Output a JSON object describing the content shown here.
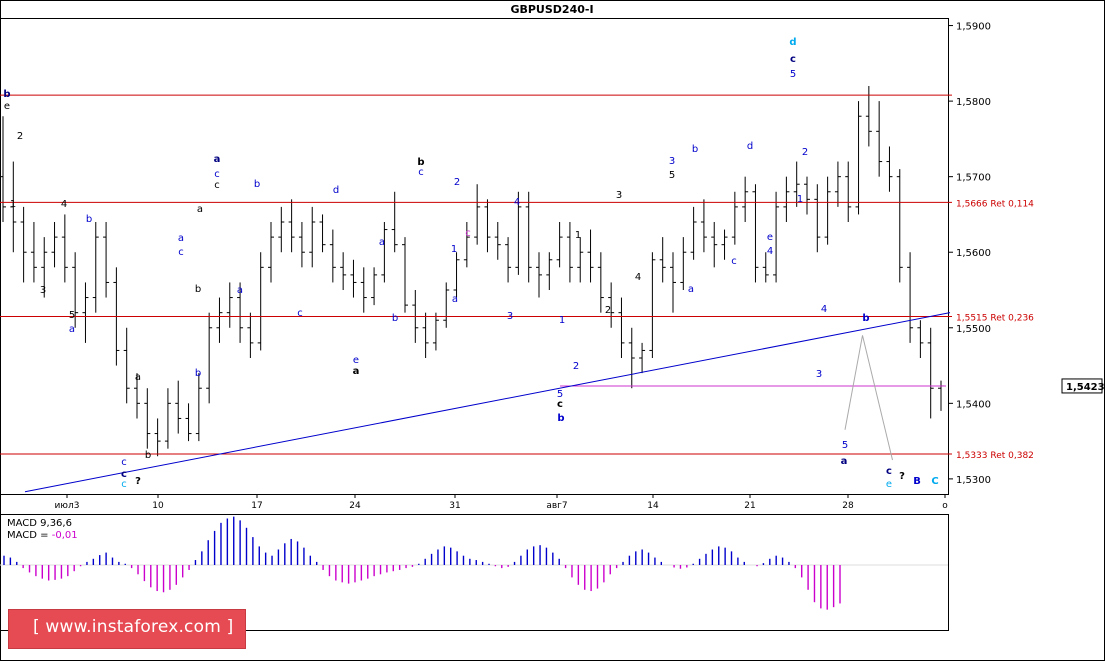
{
  "chart_data": {
    "type": "candlestick",
    "title": "GBPUSD240-I",
    "y_ticks": [
      "1,5900",
      "1,5800",
      "1,5700",
      "1,5600",
      "1,5500",
      "1,5400",
      "1,5300"
    ],
    "current_price": "1,5423",
    "x_ticks": [
      "июл3",
      "10",
      "17",
      "24",
      "31",
      "авг7",
      "14",
      "21",
      "28",
      "о"
    ],
    "series": [
      {
        "values": [
          [
            1.57,
            1.578,
            1.564,
            1.566
          ],
          [
            1.566,
            1.572,
            1.56,
            1.564
          ],
          [
            1.564,
            1.566,
            1.556,
            1.56
          ],
          [
            1.56,
            1.564,
            1.556,
            1.558
          ],
          [
            1.558,
            1.562,
            1.554,
            1.56
          ],
          [
            1.56,
            1.564,
            1.558,
            1.562
          ],
          [
            1.562,
            1.565,
            1.556,
            1.558
          ],
          [
            1.558,
            1.56,
            1.55,
            1.552
          ],
          [
            1.552,
            1.556,
            1.548,
            1.554
          ],
          [
            1.554,
            1.564,
            1.552,
            1.562
          ],
          [
            1.562,
            1.564,
            1.554,
            1.556
          ],
          [
            1.556,
            1.558,
            1.545,
            1.547
          ],
          [
            1.547,
            1.55,
            1.54,
            1.542
          ],
          [
            1.542,
            1.544,
            1.538,
            1.54
          ],
          [
            1.54,
            1.542,
            1.534,
            1.536
          ],
          [
            1.536,
            1.538,
            1.533,
            1.535
          ],
          [
            1.535,
            1.542,
            1.534,
            1.54
          ],
          [
            1.54,
            1.543,
            1.536,
            1.538
          ],
          [
            1.538,
            1.54,
            1.535,
            1.536
          ],
          [
            1.536,
            1.544,
            1.535,
            1.542
          ],
          [
            1.542,
            1.552,
            1.54,
            1.55
          ],
          [
            1.55,
            1.554,
            1.548,
            1.552
          ],
          [
            1.552,
            1.556,
            1.55,
            1.554
          ],
          [
            1.554,
            1.556,
            1.548,
            1.55
          ],
          [
            1.55,
            1.552,
            1.546,
            1.548
          ],
          [
            1.548,
            1.56,
            1.547,
            1.558
          ],
          [
            1.558,
            1.564,
            1.556,
            1.562
          ],
          [
            1.562,
            1.566,
            1.56,
            1.564
          ],
          [
            1.564,
            1.567,
            1.56,
            1.562
          ],
          [
            1.562,
            1.564,
            1.558,
            1.56
          ],
          [
            1.56,
            1.566,
            1.558,
            1.564
          ],
          [
            1.564,
            1.565,
            1.56,
            1.561
          ],
          [
            1.561,
            1.563,
            1.556,
            1.558
          ],
          [
            1.558,
            1.56,
            1.555,
            1.557
          ],
          [
            1.557,
            1.559,
            1.554,
            1.556
          ],
          [
            1.556,
            1.558,
            1.552,
            1.554
          ],
          [
            1.554,
            1.558,
            1.553,
            1.557
          ],
          [
            1.557,
            1.564,
            1.556,
            1.563
          ],
          [
            1.563,
            1.568,
            1.56,
            1.561
          ],
          [
            1.561,
            1.562,
            1.552,
            1.553
          ],
          [
            1.553,
            1.555,
            1.548,
            1.55
          ],
          [
            1.55,
            1.552,
            1.546,
            1.548
          ],
          [
            1.548,
            1.552,
            1.547,
            1.551
          ],
          [
            1.551,
            1.556,
            1.55,
            1.555
          ],
          [
            1.555,
            1.56,
            1.554,
            1.559
          ],
          [
            1.559,
            1.564,
            1.558,
            1.562
          ],
          [
            1.562,
            1.569,
            1.561,
            1.566
          ],
          [
            1.566,
            1.567,
            1.56,
            1.562
          ],
          [
            1.562,
            1.564,
            1.559,
            1.561
          ],
          [
            1.561,
            1.562,
            1.556,
            1.558
          ],
          [
            1.558,
            1.568,
            1.557,
            1.566
          ],
          [
            1.566,
            1.568,
            1.556,
            1.558
          ],
          [
            1.558,
            1.56,
            1.554,
            1.557
          ],
          [
            1.557,
            1.56,
            1.555,
            1.559
          ],
          [
            1.559,
            1.564,
            1.558,
            1.562
          ],
          [
            1.562,
            1.564,
            1.556,
            1.558
          ],
          [
            1.558,
            1.562,
            1.556,
            1.56
          ],
          [
            1.56,
            1.563,
            1.556,
            1.558
          ],
          [
            1.558,
            1.56,
            1.552,
            1.554
          ],
          [
            1.554,
            1.556,
            1.55,
            1.552
          ],
          [
            1.552,
            1.554,
            1.546,
            1.548
          ],
          [
            1.548,
            1.55,
            1.542,
            1.546
          ],
          [
            1.546,
            1.548,
            1.544,
            1.547
          ],
          [
            1.547,
            1.56,
            1.546,
            1.559
          ],
          [
            1.559,
            1.562,
            1.556,
            1.558
          ],
          [
            1.558,
            1.56,
            1.552,
            1.556
          ],
          [
            1.556,
            1.562,
            1.555,
            1.56
          ],
          [
            1.56,
            1.566,
            1.559,
            1.564
          ],
          [
            1.564,
            1.567,
            1.56,
            1.562
          ],
          [
            1.562,
            1.564,
            1.558,
            1.561
          ],
          [
            1.561,
            1.563,
            1.559,
            1.562
          ],
          [
            1.562,
            1.568,
            1.561,
            1.566
          ],
          [
            1.566,
            1.57,
            1.564,
            1.568
          ],
          [
            1.568,
            1.569,
            1.556,
            1.558
          ],
          [
            1.558,
            1.56,
            1.556,
            1.557
          ],
          [
            1.557,
            1.568,
            1.556,
            1.566
          ],
          [
            1.566,
            1.57,
            1.564,
            1.568
          ],
          [
            1.568,
            1.572,
            1.566,
            1.569
          ],
          [
            1.569,
            1.57,
            1.565,
            1.567
          ],
          [
            1.567,
            1.569,
            1.56,
            1.562
          ],
          [
            1.562,
            1.57,
            1.561,
            1.568
          ],
          [
            1.568,
            1.572,
            1.566,
            1.57
          ],
          [
            1.57,
            1.572,
            1.564,
            1.566
          ],
          [
            1.566,
            1.58,
            1.565,
            1.578
          ],
          [
            1.578,
            1.582,
            1.574,
            1.576
          ],
          [
            1.576,
            1.58,
            1.57,
            1.572
          ],
          [
            1.572,
            1.574,
            1.568,
            1.57
          ],
          [
            1.57,
            1.571,
            1.556,
            1.558
          ],
          [
            1.558,
            1.56,
            1.548,
            1.55
          ],
          [
            1.55,
            1.551,
            1.546,
            1.548
          ],
          [
            1.548,
            1.55,
            1.538,
            1.542
          ],
          [
            1.542,
            1.543,
            1.539,
            1.5423
          ]
        ]
      }
    ],
    "horizontal_levels": [
      {
        "value": 1.5808,
        "label": ""
      },
      {
        "value": 1.5666,
        "label": "1,5666 Ret 0,114"
      },
      {
        "value": 1.5515,
        "label": "1,5515 Ret 0,236"
      },
      {
        "value": 1.5333,
        "label": "1,5333 Ret 0,382"
      }
    ],
    "price_line": {
      "value": 1.5423,
      "color": "#cc33cc"
    },
    "trendline": {
      "from": [
        "июл3",
        1.5283
      ],
      "to": [
        "о",
        1.552
      ],
      "color": "#0000cc"
    },
    "projection": {
      "points": [
        [
          0.0,
          1.5365
        ],
        [
          0.35,
          1.549
        ],
        [
          0.95,
          1.5325
        ]
      ],
      "color": "#aaaaaa"
    },
    "wave_labels": [
      {
        "text": "b",
        "color": "#000080",
        "bold": true
      },
      {
        "text": "e",
        "color": "#000000"
      },
      {
        "text": "2",
        "color": "#000000"
      },
      {
        "text": "1",
        "color": "#000000"
      },
      {
        "text": "4",
        "color": "#000000"
      },
      {
        "text": "3",
        "color": "#000000"
      },
      {
        "text": "b",
        "color": "#0000cc"
      },
      {
        "text": "5",
        "color": "#000000"
      },
      {
        "text": "a",
        "color": "#0000cc"
      },
      {
        "text": "c",
        "color": "#0000cc"
      },
      {
        "text": "c",
        "color": "#000080",
        "bold": true
      },
      {
        "text": "c",
        "color": "#00aaee"
      },
      {
        "text": "?",
        "color": "#000000",
        "bold": true
      },
      {
        "text": "b",
        "color": "#000000"
      },
      {
        "text": "a",
        "color": "#000000"
      },
      {
        "text": "a",
        "color": "#0000cc"
      },
      {
        "text": "c",
        "color": "#0000cc"
      },
      {
        "text": "b",
        "color": "#000000"
      },
      {
        "text": "b",
        "color": "#0000cc"
      },
      {
        "text": "a",
        "color": "#000000"
      },
      {
        "text": "a",
        "color": "#000080",
        "bold": true
      },
      {
        "text": "c",
        "color": "#0000cc"
      },
      {
        "text": "c",
        "color": "#000000"
      },
      {
        "text": "a",
        "color": "#0000cc"
      },
      {
        "text": "b",
        "color": "#0000cc"
      },
      {
        "text": "c",
        "color": "#0000cc"
      },
      {
        "text": "d",
        "color": "#0000cc"
      },
      {
        "text": "e",
        "color": "#0000cc"
      },
      {
        "text": "a",
        "color": "#000000",
        "bold": true
      },
      {
        "text": "a",
        "color": "#0000cc"
      },
      {
        "text": "b",
        "color": "#0000cc"
      },
      {
        "text": "b",
        "color": "#000000",
        "bold": true
      },
      {
        "text": "c",
        "color": "#0000cc"
      },
      {
        "text": "a",
        "color": "#0000cc"
      },
      {
        "text": "2",
        "color": "#0000cc"
      },
      {
        "text": "c",
        "color": "#cc33cc"
      },
      {
        "text": "1",
        "color": "#0000cc"
      },
      {
        "text": "4",
        "color": "#0000cc"
      },
      {
        "text": "3",
        "color": "#0000cc"
      },
      {
        "text": "1",
        "color": "#0000cc"
      },
      {
        "text": "5",
        "color": "#0000cc"
      },
      {
        "text": "c",
        "color": "#000000",
        "bold": true
      },
      {
        "text": "b",
        "color": "#0000cc",
        "bold": true
      },
      {
        "text": "2",
        "color": "#0000cc"
      },
      {
        "text": "1",
        "color": "#000000"
      },
      {
        "text": "2",
        "color": "#000000"
      },
      {
        "text": "3",
        "color": "#000000"
      },
      {
        "text": "4",
        "color": "#000000"
      },
      {
        "text": "3",
        "color": "#0000cc"
      },
      {
        "text": "5",
        "color": "#000000"
      },
      {
        "text": "b",
        "color": "#0000cc"
      },
      {
        "text": "a",
        "color": "#0000cc"
      },
      {
        "text": "c",
        "color": "#0000cc"
      },
      {
        "text": "d",
        "color": "#0000cc"
      },
      {
        "text": "e",
        "color": "#0000cc"
      },
      {
        "text": "4",
        "color": "#0000cc"
      },
      {
        "text": "d",
        "color": "#00aaee",
        "bold": true
      },
      {
        "text": "c",
        "color": "#000080",
        "bold": true
      },
      {
        "text": "5",
        "color": "#0000cc"
      },
      {
        "text": "2",
        "color": "#0000cc"
      },
      {
        "text": "1",
        "color": "#0000cc"
      },
      {
        "text": "4",
        "color": "#0000cc"
      },
      {
        "text": "3",
        "color": "#0000cc"
      },
      {
        "text": "b",
        "color": "#0000cc",
        "bold": true
      },
      {
        "text": "5",
        "color": "#0000cc"
      },
      {
        "text": "a",
        "color": "#000080",
        "bold": true
      },
      {
        "text": "c",
        "color": "#000080",
        "bold": true
      },
      {
        "text": "e",
        "color": "#00aaee"
      },
      {
        "text": "?",
        "color": "#000000",
        "bold": true
      },
      {
        "text": "B",
        "color": "#0000cc",
        "bold": true
      },
      {
        "text": "C",
        "color": "#00aaee",
        "bold": true
      }
    ],
    "macd": {
      "title": "MACD 9,36,6",
      "value_label": "MACD = ",
      "value": "-0,01",
      "value_color": "#cc00cc",
      "positive_color": "#0000cc",
      "negative_color": "#cc00cc",
      "histogram": [
        0.15,
        0.12,
        0.05,
        -0.05,
        -0.12,
        -0.18,
        -0.22,
        -0.25,
        -0.24,
        -0.22,
        -0.18,
        -0.1,
        -0.02,
        0.05,
        0.1,
        0.16,
        0.2,
        0.12,
        0.05,
        0.02,
        -0.05,
        -0.15,
        -0.26,
        -0.36,
        -0.42,
        -0.44,
        -0.4,
        -0.32,
        -0.2,
        -0.08,
        0.08,
        0.22,
        0.4,
        0.55,
        0.68,
        0.75,
        0.78,
        0.72,
        0.6,
        0.45,
        0.3,
        0.2,
        0.15,
        0.25,
        0.35,
        0.42,
        0.38,
        0.28,
        0.15,
        0.05,
        -0.08,
        -0.18,
        -0.25,
        -0.28,
        -0.3,
        -0.28,
        -0.25,
        -0.22,
        -0.18,
        -0.15,
        -0.12,
        -0.1,
        -0.08,
        -0.05,
        -0.03,
        0.02,
        0.1,
        0.18,
        0.25,
        0.3,
        0.28,
        0.22,
        0.15,
        0.1,
        0.08,
        0.05,
        0.02,
        -0.02,
        -0.05,
        -0.03,
        0.05,
        0.15,
        0.25,
        0.3,
        0.32,
        0.28,
        0.2,
        0.1,
        -0.05,
        -0.2,
        -0.32,
        -0.4,
        -0.42,
        -0.38,
        -0.28,
        -0.15,
        -0.05,
        0.05,
        0.15,
        0.22,
        0.25,
        0.2,
        0.12,
        0.05,
        0.0,
        -0.04,
        -0.06,
        -0.04,
        0.02,
        0.1,
        0.18,
        0.25,
        0.3,
        0.28,
        0.22,
        0.12,
        0.05,
        0.0,
        -0.02,
        0.03,
        0.1,
        0.15,
        0.12,
        0.05,
        -0.05,
        -0.2,
        -0.4,
        -0.6,
        -0.7,
        -0.72,
        -0.68,
        -0.62
      ]
    }
  },
  "watermark": {
    "text": "[ www.instaforex.com ]",
    "color": "#e64a52"
  }
}
